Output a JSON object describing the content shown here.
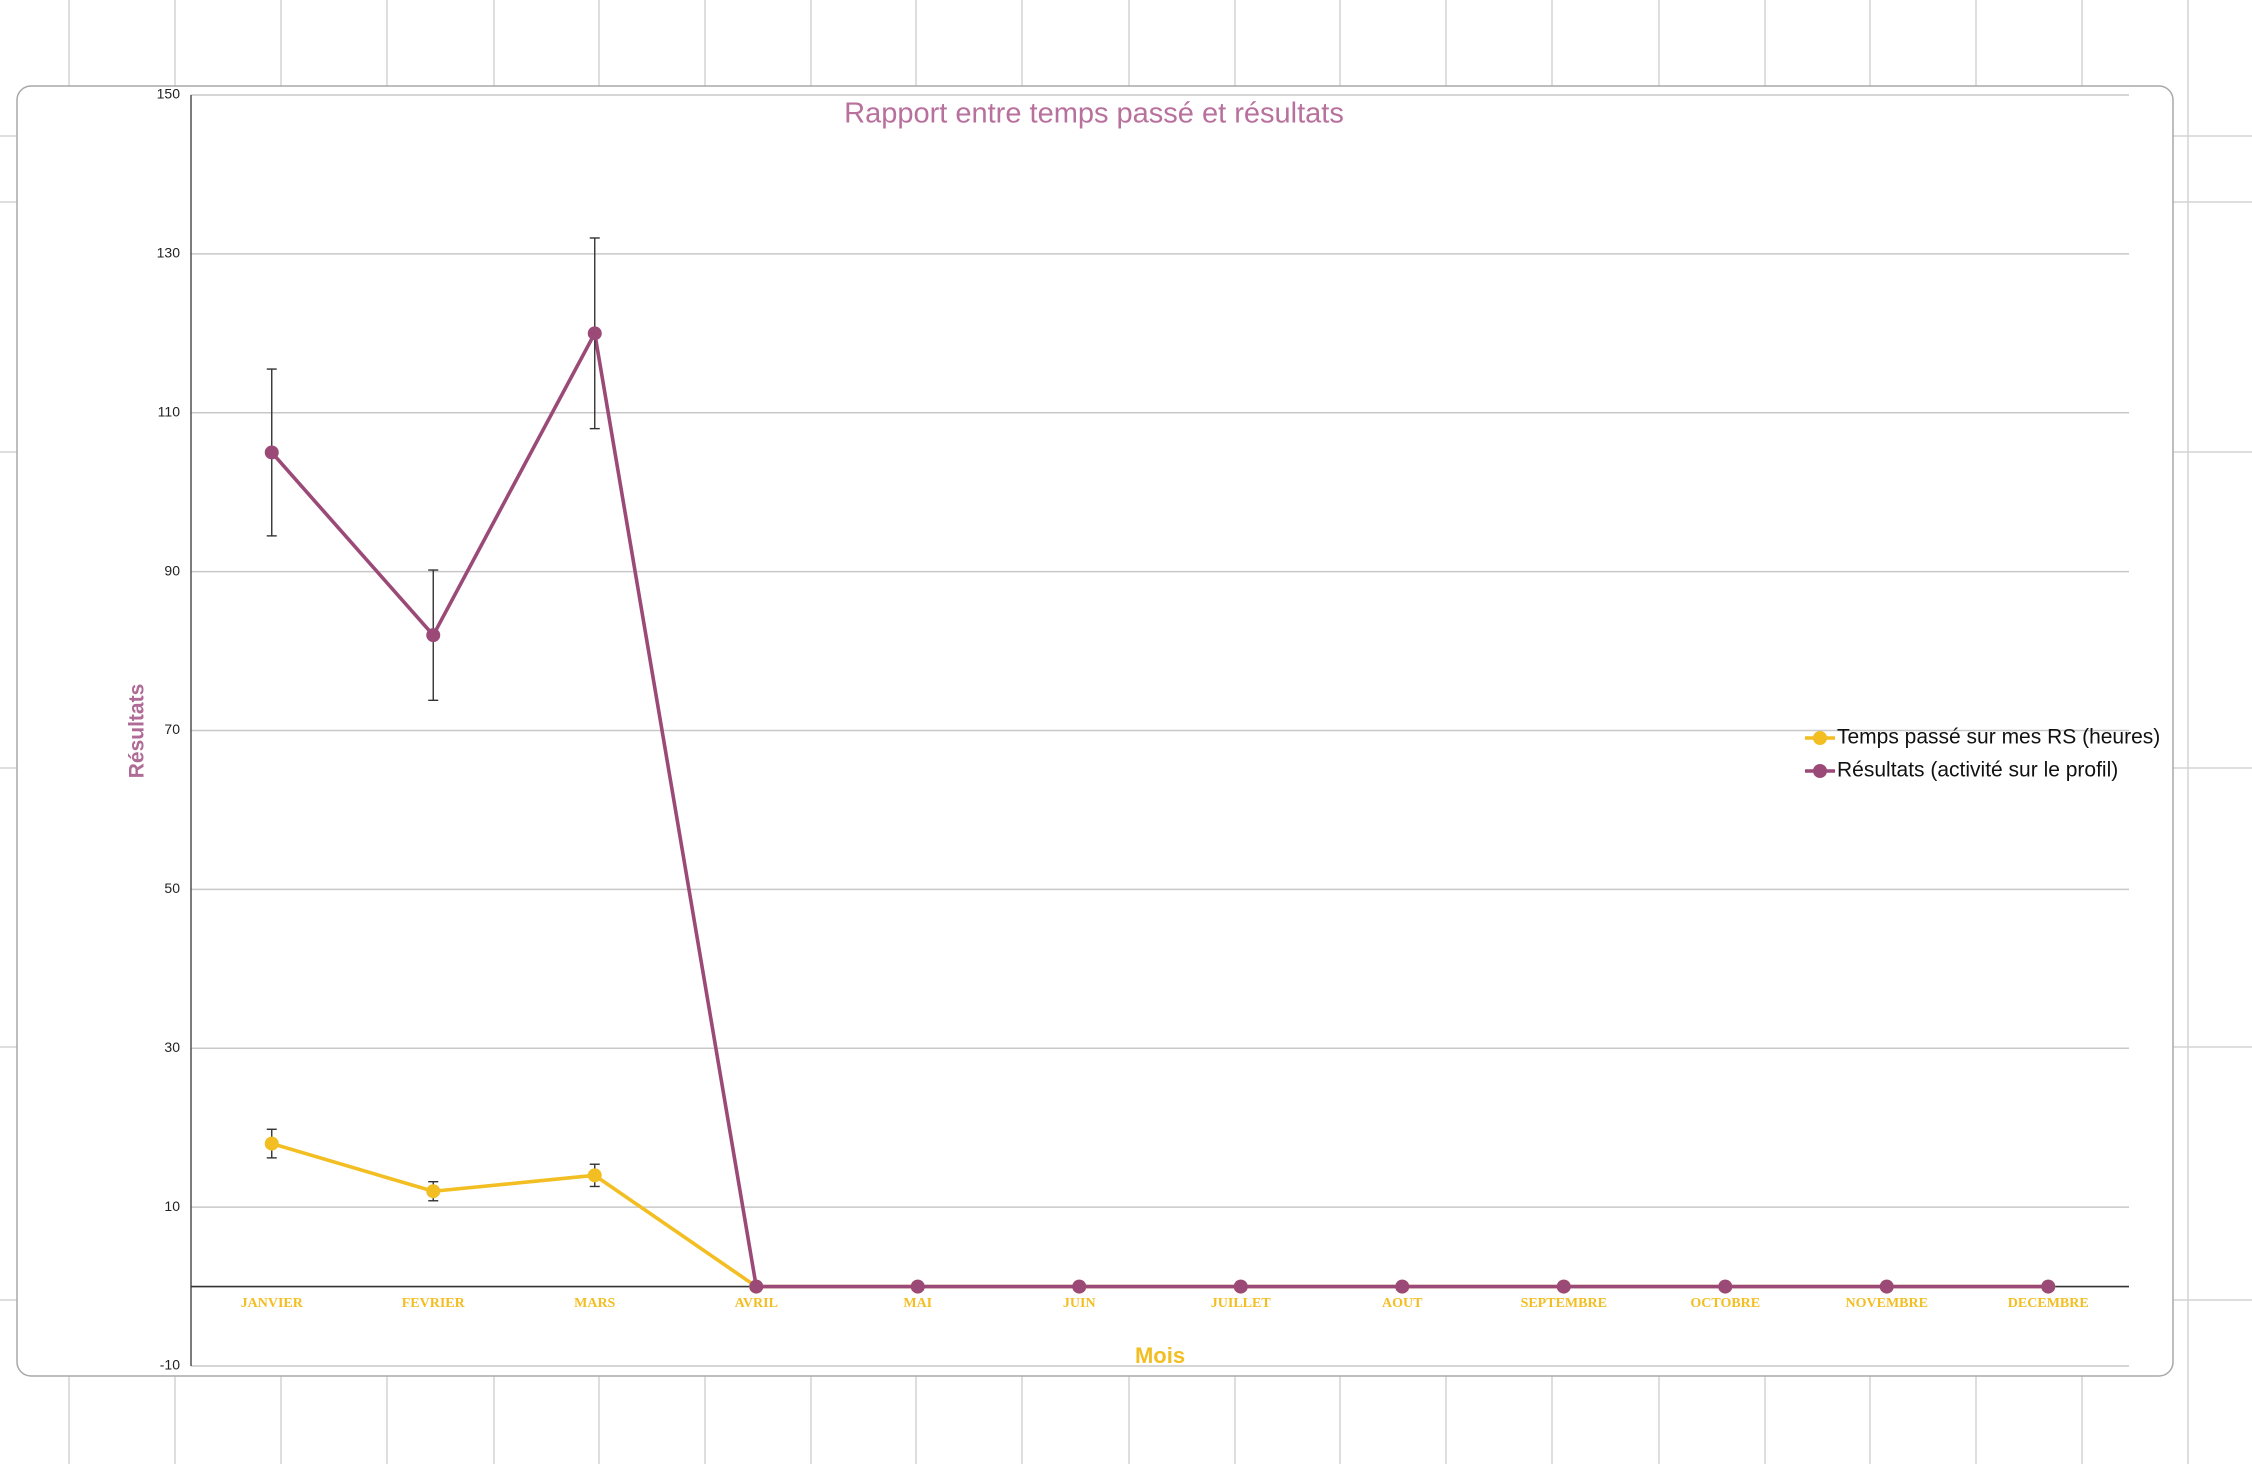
{
  "chart_data": {
    "type": "line",
    "title": "Rapport entre temps passé et résultats",
    "x_label": "Mois",
    "y_label": "Résultats",
    "categories": [
      "JANVIER",
      "FEVRIER",
      "MARS",
      "AVRIL",
      "MAI",
      "JUIN",
      "JUILLET",
      "AOUT",
      "SEPTEMBRE",
      "OCTOBRE",
      "NOVEMBRE",
      "DECEMBRE"
    ],
    "series": [
      {
        "name": "Temps passé sur mes RS (heures)",
        "color": "#f2be22",
        "values": [
          18,
          12,
          14,
          0,
          0,
          0,
          0,
          0,
          0,
          0,
          0,
          0
        ],
        "errors": [
          1.8,
          1.2,
          1.4,
          0,
          0,
          0,
          0,
          0,
          0,
          0,
          0,
          0
        ]
      },
      {
        "name": "Résultats (activité sur le profil)",
        "color": "#9b4a78",
        "values": [
          105,
          82,
          120,
          0,
          0,
          0,
          0,
          0,
          0,
          0,
          0,
          0
        ],
        "errors": [
          10.5,
          8.2,
          12,
          0,
          0,
          0,
          0,
          0,
          0,
          0,
          0,
          0
        ]
      }
    ],
    "ylim": [
      -10,
      150
    ],
    "yticks": [
      -10,
      10,
      30,
      50,
      70,
      90,
      110,
      130,
      150
    ],
    "grid": true,
    "legend": "right"
  }
}
